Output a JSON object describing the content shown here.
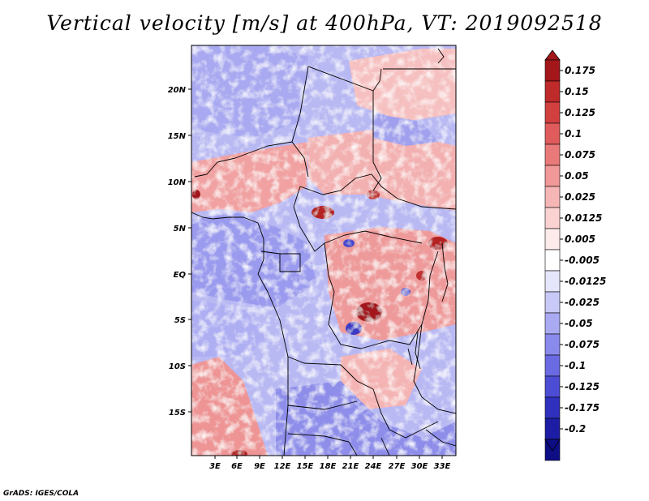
{
  "title": "Vertical velocity [m/s] at 400hPa, VT: 2019092518",
  "credit": "GrADS: IGES/COLA",
  "map": {
    "lat_ticks": [
      "20N",
      "15N",
      "10N",
      "5N",
      "EQ",
      "5S",
      "10S",
      "15S"
    ],
    "lon_ticks": [
      "3E",
      "6E",
      "9E",
      "12E",
      "15E",
      "18E",
      "21E",
      "24E",
      "27E",
      "30E",
      "33E"
    ]
  },
  "colorbar": {
    "levels": [
      "0.175",
      "0.15",
      "0.125",
      "0.1",
      "0.075",
      "0.05",
      "0.025",
      "0.0125",
      "0.005",
      "-0.005",
      "-0.0125",
      "-0.025",
      "-0.05",
      "-0.075",
      "-0.1",
      "-0.125",
      "-0.175",
      "-0.2"
    ],
    "colors": [
      "#a3171a",
      "#bf2a2a",
      "#d23f3f",
      "#e05b5b",
      "#ea7a7a",
      "#f19898",
      "#f6b6b6",
      "#fad2d2",
      "#fdeaea",
      "#ffffff",
      "#e5e5fc",
      "#c9c9f7",
      "#aaaaf2",
      "#8a8aec",
      "#6a6ae2",
      "#4c4cd5",
      "#3030be",
      "#1c1ca4",
      "#0d0d86"
    ],
    "top_color": "#a3171a",
    "bottom_color": "#0d0d86"
  }
}
